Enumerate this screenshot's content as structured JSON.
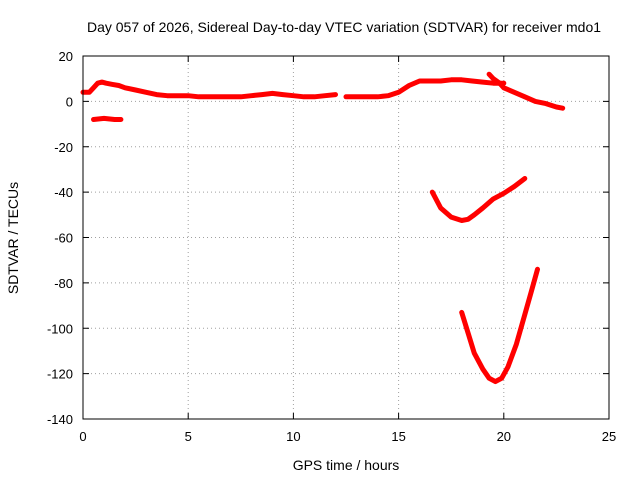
{
  "chart_data": {
    "type": "line",
    "title": "Day 057 of 2026, Sidereal Day-to-day VTEC variation (SDTVAR) for receiver mdo1",
    "xlabel": "GPS time / hours",
    "ylabel": "SDTVAR / TECUs",
    "xlim": [
      0,
      25
    ],
    "ylim": [
      -140,
      20
    ],
    "xticks": [
      0,
      5,
      10,
      15,
      20,
      25
    ],
    "yticks": [
      -140,
      -120,
      -100,
      -80,
      -60,
      -40,
      -20,
      0,
      20
    ],
    "grid": true,
    "color": "#ff0000",
    "series": [
      {
        "name": "arc-1",
        "x": [
          0.0,
          0.3,
          0.5,
          0.7,
          0.9,
          1.1,
          1.4,
          1.7,
          2.0,
          2.5,
          3.0,
          3.5,
          4.0,
          4.5,
          5.0,
          5.5,
          6.0,
          6.5,
          7.0,
          7.5,
          8.0,
          8.5,
          9.0,
          9.5,
          10.0,
          10.5,
          11.0,
          11.5,
          12.0
        ],
        "y": [
          4,
          4,
          6,
          8,
          8.5,
          8,
          7.5,
          7,
          6,
          5,
          4,
          3,
          2.5,
          2.5,
          2.5,
          2,
          2,
          2,
          2,
          2,
          2.5,
          3,
          3.5,
          3,
          2.5,
          2,
          2,
          2.5,
          3
        ]
      },
      {
        "name": "arc-2",
        "x": [
          0.5,
          1.0,
          1.5,
          1.8
        ],
        "y": [
          -8,
          -7.5,
          -8,
          -8
        ]
      },
      {
        "name": "arc-3",
        "x": [
          12.5,
          13.0,
          13.5,
          14.0,
          14.5,
          15.0,
          15.5,
          16.0,
          16.5,
          17.0,
          17.5,
          18.0,
          18.5,
          19.0,
          19.5,
          20.0
        ],
        "y": [
          2,
          2,
          2,
          2,
          2.5,
          4,
          7,
          9,
          9,
          9,
          9.5,
          9.5,
          9,
          8.5,
          8,
          8
        ]
      },
      {
        "name": "arc-4",
        "x": [
          19.3,
          19.5,
          19.8,
          20.0,
          20.5,
          21.0,
          21.5,
          22.0,
          22.5,
          22.8
        ],
        "y": [
          12,
          10,
          8,
          6,
          4,
          2,
          0,
          -1,
          -2.5,
          -3
        ]
      },
      {
        "name": "arc-5",
        "x": [
          16.6,
          17.0,
          17.5,
          18.0,
          18.3,
          18.6,
          19.0,
          19.5,
          20.0,
          20.5,
          21.0
        ],
        "y": [
          -40,
          -47,
          -51,
          -52.5,
          -52,
          -50,
          -47,
          -43,
          -40.5,
          -37.5,
          -34
        ]
      },
      {
        "name": "arc-6",
        "x": [
          18.0,
          18.3,
          18.6,
          19.0,
          19.3,
          19.6,
          19.9,
          20.2,
          20.6,
          21.0,
          21.3,
          21.6
        ],
        "y": [
          -93,
          -102,
          -111,
          -118,
          -122,
          -123.5,
          -122,
          -117,
          -107,
          -94,
          -84,
          -74
        ]
      }
    ]
  }
}
